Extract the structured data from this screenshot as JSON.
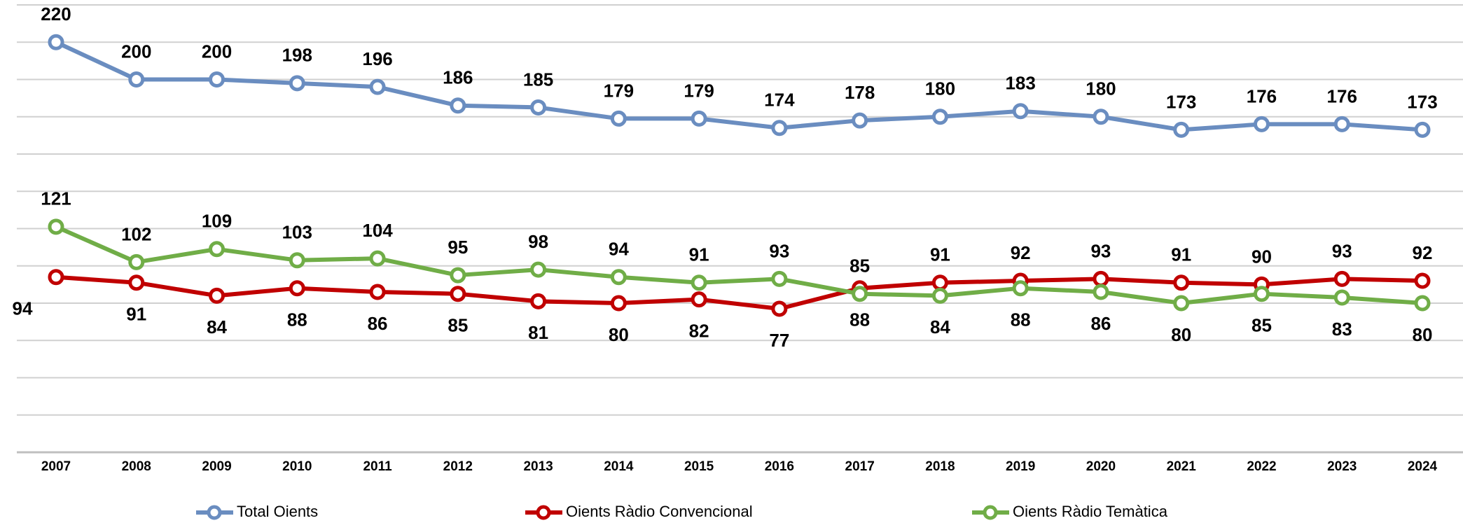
{
  "chart_data": {
    "type": "line",
    "categories": [
      "2007",
      "2008",
      "2009",
      "2010",
      "2011",
      "2012",
      "2013",
      "2014",
      "2015",
      "2016",
      "2017",
      "2018",
      "2019",
      "2020",
      "2021",
      "2022",
      "2023",
      "2024"
    ],
    "series": [
      {
        "name": "Total Oients",
        "color": "#6a8dc0",
        "values": [
          220,
          200,
          200,
          198,
          196,
          186,
          185,
          179,
          179,
          174,
          178,
          180,
          183,
          180,
          173,
          176,
          176,
          173
        ]
      },
      {
        "name": "Oients Ràdio Convencional",
        "color": "#c00000",
        "values": [
          94,
          91,
          84,
          88,
          86,
          85,
          81,
          80,
          82,
          77,
          88,
          91,
          92,
          93,
          91,
          90,
          93,
          92
        ]
      },
      {
        "name": "Oients Ràdio Temàtica",
        "color": "#70ad47",
        "values": [
          121,
          102,
          109,
          103,
          104,
          95,
          98,
          94,
          91,
          93,
          85,
          84,
          88,
          86,
          80,
          85,
          83,
          80
        ]
      }
    ],
    "ylim": [
      0,
      240
    ],
    "yticks": [
      0,
      20,
      40,
      60,
      80,
      100,
      120,
      140,
      160,
      180,
      200,
      220,
      240
    ],
    "grid": true,
    "legend": "bottom"
  }
}
